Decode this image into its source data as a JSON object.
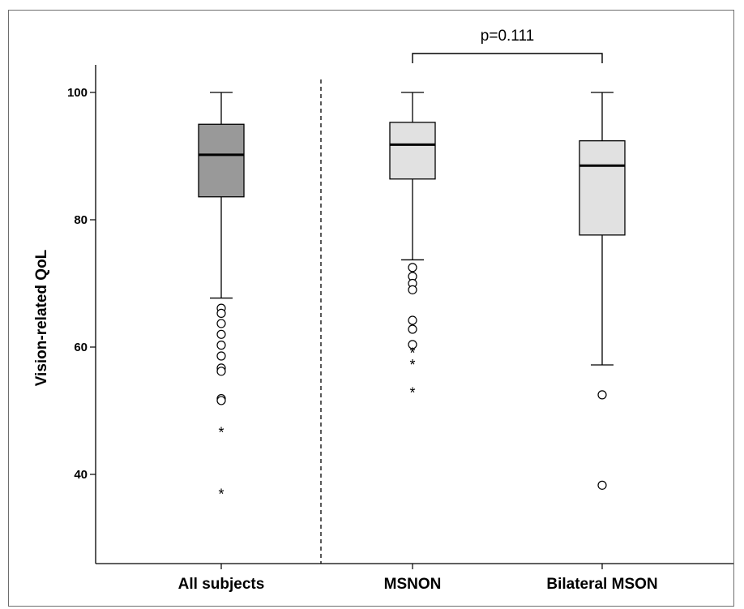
{
  "chart_data": {
    "type": "box",
    "title": "",
    "xlabel": "",
    "ylabel": "Vision-related QoL",
    "ylim": [
      25,
      104
    ],
    "yticks": [
      40,
      60,
      80,
      100
    ],
    "categories": [
      "All subjects",
      "MSNON",
      "Bilateral MSON"
    ],
    "boxes": [
      {
        "category": "All subjects",
        "whisker_low": 67.7,
        "q1": 83.6,
        "median": 90.2,
        "q3": 95.0,
        "whisker_high": 100.0,
        "outliers": [
          66.1,
          65.3,
          63.7,
          62.0,
          60.3,
          58.6,
          56.7,
          56.2,
          51.9,
          51.6
        ],
        "extremes": [
          46.7,
          37.0
        ],
        "fill": "#999999"
      },
      {
        "category": "MSNON",
        "whisker_low": 73.7,
        "q1": 86.4,
        "median": 91.8,
        "q3": 95.3,
        "whisker_high": 100.0,
        "outliers": [
          72.5,
          71.1,
          70.0,
          69.0,
          64.2,
          62.8,
          60.4
        ],
        "extremes": [
          59.2,
          57.3,
          52.9
        ],
        "fill": "#e1e1e1"
      },
      {
        "category": "Bilateral MSON",
        "whisker_low": 57.2,
        "q1": 77.6,
        "median": 88.5,
        "q3": 92.4,
        "whisker_high": 100.0,
        "outliers": [
          52.5,
          38.3
        ],
        "extremes": [],
        "fill": "#e1e1e1"
      }
    ],
    "comparison": {
      "label": "p=0.111",
      "from": "MSNON",
      "to": "Bilateral MSON"
    },
    "divider": "dashed vertical line between All subjects and MSNON"
  }
}
